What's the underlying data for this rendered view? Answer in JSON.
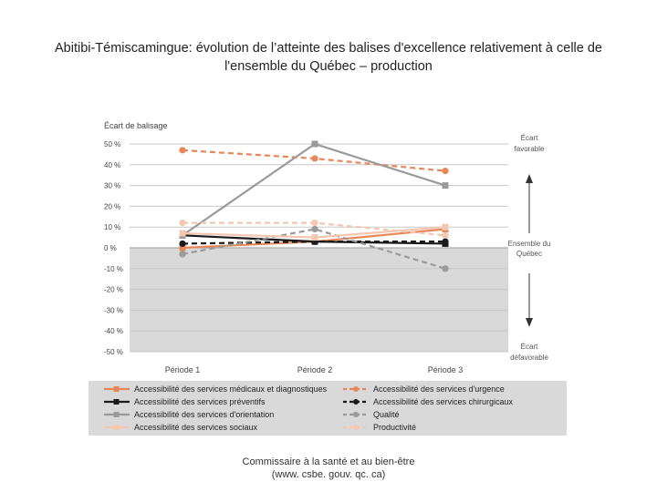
{
  "title_line1": "Abitibi-Témiscamingue: évolution de l’atteinte des balises d'excellence relativement à celle de",
  "title_line2": "l'ensemble du Québec – production",
  "footer_line1": "Commissaire à la santé et au bien-être",
  "footer_line2": "(www. csbe. gouv. qc. ca)",
  "colors": {
    "negative_band": "#d9d9d9",
    "grid": "#c8c8c8",
    "legend_bg": "#d9d9d9",
    "arrow": "#333333"
  },
  "chart_data": {
    "type": "line",
    "ylabel": "Écart de balisage",
    "xlabel": "",
    "ylim": [
      -50,
      50
    ],
    "y_ticks": [
      50,
      40,
      30,
      20,
      10,
      0,
      -10,
      -20,
      -30,
      -40,
      -50
    ],
    "y_tick_labels": [
      "50 %",
      "40 %",
      "30 %",
      "20 %",
      "10 %",
      "0 %",
      "-10 %",
      "-20 %",
      "-30 %",
      "-40 %",
      "-50 %"
    ],
    "categories": [
      "Période 1",
      "Période 2",
      "Période 3"
    ],
    "annotation_top": [
      "Écart",
      "favorable"
    ],
    "annotation_middle": [
      "Ensemble du",
      "Québec"
    ],
    "annotation_bottom": [
      "Écart",
      "défavorable"
    ],
    "series": [
      {
        "name": "Accessibilité des services médicaux et diagnostiques",
        "values": [
          0,
          3,
          9
        ],
        "color": "#e8875a",
        "dashed": false,
        "marker": "square"
      },
      {
        "name": "Accessibilité des services d'urgence",
        "values": [
          47,
          43,
          37
        ],
        "color": "#e8875a",
        "dashed": true,
        "marker": "circle"
      },
      {
        "name": "Accessibilité des services préventifs",
        "values": [
          6,
          3,
          2
        ],
        "color": "#1a1a1a",
        "dashed": false,
        "marker": "square"
      },
      {
        "name": "Accessibilité des services chirurgicaux",
        "values": [
          2,
          3,
          3
        ],
        "color": "#1a1a1a",
        "dashed": true,
        "marker": "circle"
      },
      {
        "name": "Accessibilité des services d'orientation",
        "values": [
          6,
          50,
          30
        ],
        "color": "#9a9a9a",
        "dashed": false,
        "marker": "square"
      },
      {
        "name": "Qualité",
        "values": [
          -3,
          9,
          -10
        ],
        "color": "#9a9a9a",
        "dashed": true,
        "marker": "circle"
      },
      {
        "name": "Accessibilité des services sociaux",
        "values": [
          7,
          5,
          10
        ],
        "color": "#f3c7b0",
        "dashed": false,
        "marker": "square"
      },
      {
        "name": "Productivité",
        "values": [
          12,
          12,
          6
        ],
        "color": "#f3c7b0",
        "dashed": true,
        "marker": "circle"
      }
    ]
  }
}
